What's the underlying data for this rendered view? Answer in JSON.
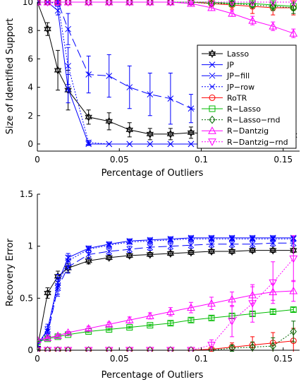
{
  "chart_data": [
    {
      "type": "line",
      "xlabel": "Percentage of Outliers",
      "ylabel": "Size of Identified Support",
      "xlim": [
        0,
        0.16
      ],
      "ylim": [
        -0.5,
        10
      ],
      "xticks": [
        0,
        0.05,
        0.1,
        0.15
      ],
      "xtick_labels": [
        "0",
        "0.05",
        "0.1",
        "0.15"
      ],
      "yticks": [
        0,
        2,
        4,
        6,
        8,
        10
      ],
      "ytick_labels": [
        "0",
        "2",
        "4",
        "6",
        "8",
        "10"
      ],
      "legend": "bottom-right",
      "x": [
        0,
        0.00625,
        0.0125,
        0.01875,
        0.03125,
        0.04375,
        0.05625,
        0.06875,
        0.08125,
        0.09375,
        0.10625,
        0.11875,
        0.13125,
        0.14375,
        0.15625
      ],
      "series": [
        {
          "name": "Lasso",
          "color": "#000000",
          "dash": "solid",
          "marker": "star",
          "values": [
            10,
            8.1,
            5.2,
            3.8,
            1.9,
            1.6,
            1.0,
            0.7,
            0.7,
            0.8,
            0.7,
            0.6,
            0.6,
            0.6,
            0.6
          ],
          "err": [
            0,
            0.45,
            1.4,
            1.4,
            0.5,
            0.6,
            0.5,
            0.4,
            0.4,
            0.4,
            0.4,
            0.3,
            0.3,
            0.3,
            0.3
          ]
        },
        {
          "name": "JP",
          "color": "#0000ff",
          "dash": "solid",
          "marker": "x",
          "values": [
            10,
            10,
            9.4,
            3.9,
            0.0,
            0.0,
            0.0,
            0.0,
            0.0,
            0.0,
            0.0,
            0.0,
            0.0,
            0.0,
            0.0
          ],
          "err": [
            0,
            0,
            0.3,
            1.0,
            0.1,
            0,
            0,
            0,
            0,
            0,
            0,
            0,
            0,
            0,
            0
          ]
        },
        {
          "name": "JP−fill",
          "color": "#0000ff",
          "dash": "12,5",
          "marker": "x",
          "values": [
            10,
            10,
            10,
            8.1,
            4.9,
            4.8,
            4.0,
            3.5,
            3.2,
            2.5,
            2.2,
            2.0,
            1.9,
            1.8,
            1.8
          ],
          "err": [
            0,
            0,
            0.2,
            1.1,
            1.3,
            1.5,
            1.5,
            1.5,
            1.8,
            1.0,
            0.8,
            0.8,
            0.8,
            0.8,
            0.8
          ]
        },
        {
          "name": "JP−row",
          "color": "#0000ff",
          "dash": "2,2",
          "marker": "x",
          "values": [
            10,
            10,
            9.9,
            5.5,
            0.1,
            0.0,
            0.0,
            0.0,
            0.0,
            0.0,
            0.0,
            0.0,
            0.0,
            0.0,
            0.0
          ],
          "err": [
            0,
            0,
            0.2,
            1.3,
            0.15,
            0,
            0,
            0,
            0,
            0,
            0,
            0,
            0,
            0,
            0
          ]
        },
        {
          "name": "RoTR",
          "color": "#ff0000",
          "dash": "solid",
          "marker": "circle",
          "values": [
            10,
            10,
            10,
            10,
            10,
            10,
            10,
            10,
            10,
            10,
            9.9,
            9.8,
            9.7,
            9.6,
            9.6
          ],
          "err": [
            0,
            0,
            0,
            0,
            0,
            0,
            0,
            0,
            0,
            0,
            0.2,
            0.3,
            0.5,
            0.5,
            0.5
          ]
        },
        {
          "name": "R−Lasso",
          "color": "#00bb00",
          "dash": "solid",
          "marker": "square",
          "values": [
            10,
            10,
            10,
            10,
            10,
            10,
            10,
            10,
            10,
            10,
            10,
            9.9,
            9.9,
            9.8,
            9.7
          ],
          "err": [
            0,
            0,
            0,
            0,
            0,
            0,
            0,
            0,
            0,
            0,
            0,
            0.15,
            0.2,
            0.3,
            0.3
          ]
        },
        {
          "name": "R−Lasso−rnd",
          "color": "#006600",
          "dash": "2,2",
          "marker": "diamond",
          "values": [
            10,
            10,
            10,
            10,
            10,
            10,
            10,
            10,
            10,
            10,
            9.9,
            9.9,
            9.8,
            9.7,
            9.6
          ],
          "err": [
            0,
            0,
            0,
            0,
            0,
            0,
            0,
            0,
            0,
            0,
            0.1,
            0.15,
            0.2,
            0.3,
            0.4
          ]
        },
        {
          "name": "R−Dantzig",
          "color": "#ff00ff",
          "dash": "solid",
          "marker": "triangle-up",
          "values": [
            10,
            10,
            10,
            10,
            10,
            10,
            10,
            10,
            10,
            9.9,
            9.6,
            9.2,
            8.7,
            8.3,
            7.8
          ],
          "err": [
            0,
            0,
            0,
            0,
            0,
            0,
            0,
            0,
            0,
            0.1,
            0.2,
            0.2,
            0.3,
            0.3,
            0.3
          ]
        },
        {
          "name": "R−Dantzig−rnd",
          "color": "#ff00ff",
          "dash": "2,2",
          "marker": "triangle-down",
          "values": [
            10,
            10,
            10,
            10,
            10,
            10,
            10,
            10,
            10,
            10,
            10,
            10,
            10,
            10,
            10
          ],
          "err": [
            0,
            0,
            0,
            0,
            0,
            0,
            0,
            0,
            0,
            0,
            0,
            0,
            0,
            0,
            0
          ]
        }
      ]
    },
    {
      "type": "line",
      "xlabel": "Percentage of Outliers",
      "ylabel": "Recovery Error",
      "xlim": [
        0,
        0.16
      ],
      "ylim": [
        0,
        1.5
      ],
      "xticks": [
        0,
        0.05,
        0.1,
        0.15
      ],
      "xtick_labels": [
        "0",
        "0.05",
        "0.1",
        "0.15"
      ],
      "yticks": [
        0,
        0.5,
        1,
        1.5
      ],
      "ytick_labels": [
        "0",
        "0.5",
        "1",
        "1.5"
      ],
      "x": [
        0,
        0.00625,
        0.0125,
        0.01875,
        0.03125,
        0.04375,
        0.05625,
        0.06875,
        0.08125,
        0.09375,
        0.10625,
        0.11875,
        0.13125,
        0.14375,
        0.15625
      ],
      "series": [
        {
          "name": "Lasso",
          "color": "#000000",
          "dash": "solid",
          "marker": "star",
          "values": [
            0.02,
            0.55,
            0.71,
            0.79,
            0.86,
            0.89,
            0.91,
            0.92,
            0.93,
            0.94,
            0.95,
            0.95,
            0.96,
            0.96,
            0.96
          ],
          "err": [
            0,
            0.05,
            0.05,
            0.04,
            0.03,
            0.02,
            0.02,
            0.02,
            0.02,
            0.02,
            0.02,
            0.02,
            0.02,
            0.02,
            0.02
          ]
        },
        {
          "name": "JP",
          "color": "#0000ff",
          "dash": "solid",
          "marker": "x",
          "values": [
            0.05,
            0.2,
            0.65,
            0.89,
            0.98,
            1.02,
            1.05,
            1.06,
            1.07,
            1.08,
            1.08,
            1.08,
            1.08,
            1.08,
            1.08
          ],
          "err": [
            0,
            0.05,
            0.08,
            0.04,
            0.02,
            0.02,
            0.02,
            0.02,
            0.02,
            0.02,
            0.02,
            0.02,
            0.02,
            0.02,
            0.02
          ]
        },
        {
          "name": "JP−fill",
          "color": "#0000ff",
          "dash": "12,5",
          "marker": "x",
          "values": [
            0.05,
            0.15,
            0.6,
            0.8,
            0.92,
            0.95,
            0.97,
            0.99,
            1.0,
            1.01,
            1.02,
            1.02,
            1.02,
            1.03,
            1.03
          ],
          "err": [
            0,
            0.05,
            0.08,
            0.06,
            0.04,
            0.03,
            0.03,
            0.03,
            0.03,
            0.03,
            0.03,
            0.03,
            0.03,
            0.03,
            0.03
          ]
        },
        {
          "name": "JP−row",
          "color": "#0000ff",
          "dash": "2,2",
          "marker": "x",
          "values": [
            0.05,
            0.18,
            0.62,
            0.86,
            0.97,
            1.01,
            1.04,
            1.05,
            1.06,
            1.07,
            1.07,
            1.07,
            1.07,
            1.07,
            1.07
          ],
          "err": [
            0,
            0.05,
            0.08,
            0.05,
            0.03,
            0.02,
            0.02,
            0.02,
            0.02,
            0.02,
            0.02,
            0.02,
            0.02,
            0.02,
            0.02
          ]
        },
        {
          "name": "RoTR",
          "color": "#ff0000",
          "dash": "solid",
          "marker": "circle",
          "values": [
            0.0,
            0.0,
            0.0,
            0.0,
            0.0,
            0.0,
            0.0,
            0.0,
            0.0,
            0.0,
            0.01,
            0.03,
            0.05,
            0.07,
            0.09
          ],
          "err": [
            0,
            0,
            0,
            0,
            0,
            0,
            0,
            0,
            0,
            0,
            0.02,
            0.04,
            0.08,
            0.1,
            0.12
          ]
        },
        {
          "name": "R−Lasso",
          "color": "#00bb00",
          "dash": "solid",
          "marker": "square",
          "values": [
            0.08,
            0.11,
            0.13,
            0.15,
            0.18,
            0.2,
            0.22,
            0.24,
            0.26,
            0.29,
            0.31,
            0.33,
            0.35,
            0.37,
            0.39
          ],
          "err": [
            0,
            0.01,
            0.01,
            0.01,
            0.01,
            0.01,
            0.01,
            0.01,
            0.02,
            0.02,
            0.02,
            0.02,
            0.02,
            0.02,
            0.02
          ]
        },
        {
          "name": "R−Lasso−rnd",
          "color": "#006600",
          "dash": "2,2",
          "marker": "diamond",
          "values": [
            0.0,
            0.0,
            0.0,
            0.0,
            0.0,
            0.0,
            0.0,
            0.0,
            0.0,
            0.0,
            0.0,
            0.02,
            0.03,
            0.04,
            0.18
          ],
          "err": [
            0,
            0,
            0,
            0,
            0,
            0,
            0,
            0,
            0,
            0,
            0,
            0.03,
            0.05,
            0.08,
            0.1
          ]
        },
        {
          "name": "R−Dantzig",
          "color": "#ff00ff",
          "dash": "solid",
          "marker": "triangle-up",
          "values": [
            0.1,
            0.12,
            0.14,
            0.17,
            0.21,
            0.25,
            0.29,
            0.33,
            0.37,
            0.41,
            0.45,
            0.49,
            0.53,
            0.56,
            0.57
          ],
          "err": [
            0,
            0.01,
            0.01,
            0.01,
            0.02,
            0.02,
            0.03,
            0.03,
            0.04,
            0.05,
            0.06,
            0.07,
            0.08,
            0.08,
            0.1
          ]
        },
        {
          "name": "R−Dantzig−rnd",
          "color": "#ff00ff",
          "dash": "2,2",
          "marker": "triangle-down",
          "values": [
            0.0,
            0.0,
            0.0,
            0.0,
            0.0,
            0.0,
            0.0,
            0.0,
            0.0,
            0.0,
            0.05,
            0.28,
            0.45,
            0.65,
            0.88
          ],
          "err": [
            0,
            0,
            0,
            0,
            0,
            0,
            0,
            0,
            0,
            0,
            0.05,
            0.15,
            0.18,
            0.2,
            0.22
          ]
        }
      ]
    }
  ]
}
